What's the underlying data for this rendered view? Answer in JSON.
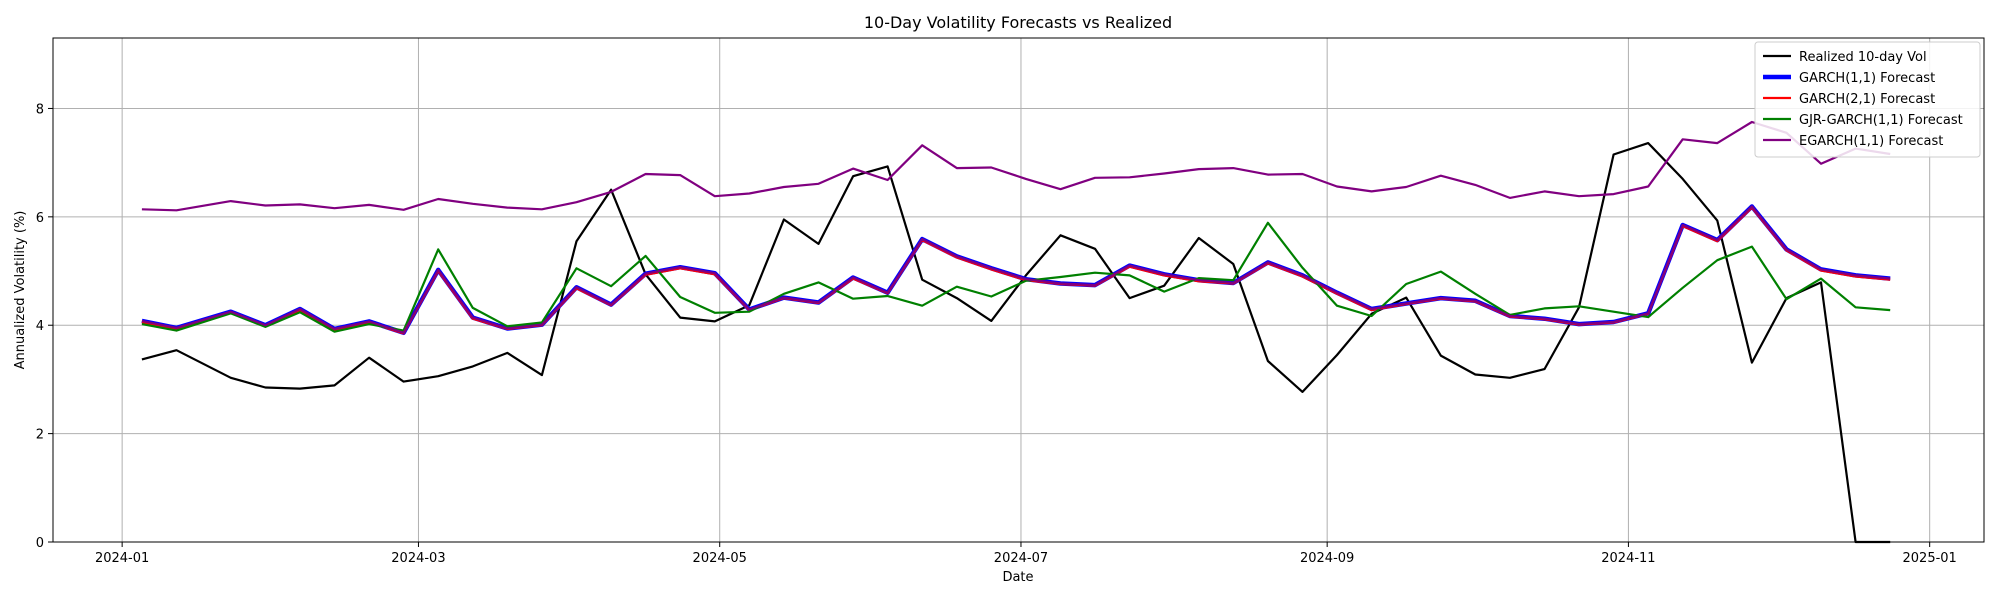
{
  "chart_data": {
    "type": "line",
    "title": "10-Day Volatility Forecasts vs Realized",
    "xlabel": "Date",
    "ylabel": "Annualized Volatility (%)",
    "xlim": [
      "2023-12-18",
      "2025-01-12"
    ],
    "ylim": [
      0,
      9.3
    ],
    "grid": true,
    "legend_position": "top-right",
    "x_ticks": [
      "2024-01-01",
      "2024-03-01",
      "2024-05-01",
      "2024-07-01",
      "2024-09-01",
      "2024-11-01",
      "2025-01-01"
    ],
    "x_tick_labels": [
      "2024-01",
      "2024-03",
      "2024-05",
      "2024-07",
      "2024-09",
      "2024-11",
      "2025-01"
    ],
    "y_ticks": [
      0,
      2,
      4,
      6,
      8
    ],
    "x": [
      "2024-01-05",
      "2024-01-12",
      "2024-01-23",
      "2024-01-30",
      "2024-02-06",
      "2024-02-13",
      "2024-02-20",
      "2024-02-27",
      "2024-03-05",
      "2024-03-12",
      "2024-03-19",
      "2024-03-26",
      "2024-04-02",
      "2024-04-09",
      "2024-04-16",
      "2024-04-23",
      "2024-04-30",
      "2024-05-07",
      "2024-05-14",
      "2024-05-21",
      "2024-05-28",
      "2024-06-04",
      "2024-06-11",
      "2024-06-18",
      "2024-06-25",
      "2024-07-02",
      "2024-07-09",
      "2024-07-16",
      "2024-07-23",
      "2024-07-30",
      "2024-08-06",
      "2024-08-13",
      "2024-08-20",
      "2024-08-27",
      "2024-09-03",
      "2024-09-10",
      "2024-09-17",
      "2024-09-24",
      "2024-10-01",
      "2024-10-08",
      "2024-10-15",
      "2024-10-22",
      "2024-10-29",
      "2024-11-05",
      "2024-11-12",
      "2024-11-19",
      "2024-11-26",
      "2024-12-03",
      "2024-12-10",
      "2024-12-17",
      "2024-12-24"
    ],
    "series": [
      {
        "name": "Realized 10-day Vol",
        "color": "#000000",
        "width": 2.2,
        "values": [
          3.37,
          3.54,
          3.03,
          2.85,
          2.83,
          2.89,
          3.4,
          2.96,
          3.06,
          3.24,
          3.49,
          3.08,
          5.55,
          6.5,
          4.94,
          4.14,
          4.07,
          4.37,
          5.95,
          5.5,
          6.75,
          6.93,
          4.84,
          4.5,
          4.08,
          4.92,
          5.66,
          5.41,
          4.5,
          4.73,
          5.61,
          5.13,
          3.34,
          2.77,
          3.45,
          4.21,
          4.51,
          3.44,
          3.09,
          3.03,
          3.19,
          4.33,
          7.15,
          7.36,
          6.7,
          5.93,
          3.31,
          4.5,
          4.79,
          0.0,
          0.0
        ]
      },
      {
        "name": "GARCH(1,1) Forecast",
        "color": "#0000ff",
        "width": 4.5,
        "values": [
          4.08,
          3.95,
          4.25,
          4.0,
          4.3,
          3.93,
          4.07,
          3.86,
          5.02,
          4.14,
          3.94,
          4.01,
          4.7,
          4.38,
          4.95,
          5.07,
          4.96,
          4.29,
          4.51,
          4.42,
          4.88,
          4.6,
          5.59,
          5.27,
          5.05,
          4.85,
          4.77,
          4.74,
          5.1,
          4.94,
          4.83,
          4.78,
          5.16,
          4.92,
          4.6,
          4.3,
          4.4,
          4.5,
          4.45,
          4.17,
          4.12,
          4.02,
          4.06,
          4.22,
          5.85,
          5.57,
          6.19,
          5.4,
          5.03,
          4.92,
          4.86
        ]
      },
      {
        "name": "GARCH(2,1) Forecast",
        "color": "#ff0000",
        "width": 2.2,
        "values": [
          4.05,
          3.93,
          4.23,
          3.98,
          4.28,
          3.91,
          4.05,
          3.85,
          5.0,
          4.12,
          3.93,
          4.0,
          4.68,
          4.37,
          4.93,
          5.05,
          4.94,
          4.28,
          4.5,
          4.41,
          4.86,
          4.59,
          5.57,
          5.25,
          5.03,
          4.83,
          4.76,
          4.73,
          5.08,
          4.92,
          4.81,
          4.77,
          5.14,
          4.9,
          4.58,
          4.28,
          4.39,
          4.49,
          4.44,
          4.16,
          4.11,
          4.01,
          4.05,
          4.21,
          5.83,
          5.55,
          6.17,
          5.38,
          5.01,
          4.9,
          4.84
        ]
      },
      {
        "name": "GJR-GARCH(1,1) Forecast",
        "color": "#008000",
        "width": 2.2,
        "values": [
          4.02,
          3.9,
          4.22,
          3.97,
          4.24,
          3.88,
          4.02,
          3.9,
          5.4,
          4.32,
          3.98,
          4.05,
          5.05,
          4.72,
          5.28,
          4.52,
          4.23,
          4.25,
          4.58,
          4.79,
          4.49,
          4.54,
          4.36,
          4.71,
          4.53,
          4.82,
          4.89,
          4.97,
          4.92,
          4.62,
          4.87,
          4.83,
          5.89,
          5.06,
          4.36,
          4.17,
          4.76,
          4.99,
          4.58,
          4.19,
          4.31,
          4.35,
          4.25,
          4.15,
          4.69,
          5.2,
          5.45,
          4.48,
          4.86,
          4.33,
          4.28
        ]
      },
      {
        "name": "EGARCH(1,1) Forecast",
        "color": "#800080",
        "width": 2.2,
        "values": [
          6.14,
          6.12,
          6.29,
          6.21,
          6.23,
          6.16,
          6.22,
          6.13,
          6.33,
          6.24,
          6.17,
          6.14,
          6.27,
          6.46,
          6.79,
          6.77,
          6.38,
          6.43,
          6.55,
          6.61,
          6.89,
          6.68,
          7.32,
          6.9,
          6.91,
          6.7,
          6.51,
          6.72,
          6.73,
          6.8,
          6.88,
          6.9,
          6.78,
          6.79,
          6.56,
          6.47,
          6.55,
          6.76,
          6.59,
          6.35,
          6.47,
          6.38,
          6.42,
          6.56,
          7.43,
          7.36,
          7.75,
          7.55,
          6.98,
          7.26,
          7.16
        ],
        "overlay": "GARCH(1,1) Forecast",
        "overlay_width": 2.2
      }
    ]
  }
}
